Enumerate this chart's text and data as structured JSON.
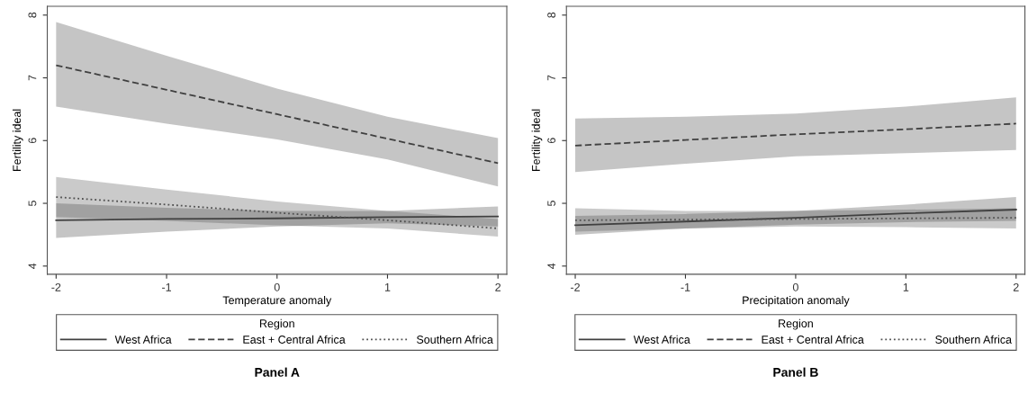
{
  "chart_data": [
    {
      "type": "line",
      "xlabel": "Temperature anomaly",
      "ylabel": "Fertility ideal",
      "legend_title": "Region",
      "legend": "bottom",
      "grid": false,
      "annotations": [
        "Panel A"
      ],
      "x": [
        -2,
        -1,
        0,
        1,
        2
      ],
      "xlim": [
        -2.08,
        2.08
      ],
      "ylim": [
        3.87,
        8.14
      ],
      "xticks": [
        -2,
        -1,
        0,
        1,
        2
      ],
      "yticks": [
        4,
        5,
        6,
        7,
        8
      ],
      "series": [
        {
          "name": "West Africa",
          "color": "#404040",
          "line_style": "solid",
          "values": [
            4.73,
            4.75,
            4.76,
            4.78,
            4.79
          ],
          "lower": [
            4.45,
            4.55,
            4.63,
            4.68,
            4.63
          ],
          "upper": [
            5.0,
            4.93,
            4.88,
            4.88,
            4.95
          ]
        },
        {
          "name": "East + Central Africa",
          "color": "#404040",
          "line_style": "dashed",
          "values": [
            7.2,
            6.81,
            6.42,
            6.03,
            5.64
          ],
          "lower": [
            6.54,
            6.27,
            6.02,
            5.7,
            5.27
          ],
          "upper": [
            7.89,
            7.35,
            6.83,
            6.38,
            6.04
          ]
        },
        {
          "name": "Southern Africa",
          "color": "#505050",
          "line_style": "dotted",
          "values": [
            5.1,
            4.98,
            4.85,
            4.73,
            4.6
          ],
          "lower": [
            4.78,
            4.72,
            4.65,
            4.6,
            4.47
          ],
          "upper": [
            5.42,
            5.22,
            5.03,
            4.88,
            4.75
          ]
        }
      ]
    },
    {
      "type": "line",
      "xlabel": "Precipitation anomaly",
      "ylabel": "Fertility ideal",
      "legend_title": "Region",
      "legend": "bottom",
      "grid": false,
      "annotations": [
        "Panel B"
      ],
      "x": [
        -2,
        -1,
        0,
        1,
        2
      ],
      "xlim": [
        -2.08,
        2.08
      ],
      "ylim": [
        3.87,
        8.14
      ],
      "xticks": [
        -2,
        -1,
        0,
        1,
        2
      ],
      "yticks": [
        4,
        5,
        6,
        7,
        8
      ],
      "series": [
        {
          "name": "West Africa",
          "color": "#404040",
          "line_style": "solid",
          "values": [
            4.65,
            4.71,
            4.77,
            4.84,
            4.9
          ],
          "lower": [
            4.5,
            4.6,
            4.66,
            4.7,
            4.72
          ],
          "upper": [
            4.8,
            4.83,
            4.88,
            4.98,
            5.1
          ]
        },
        {
          "name": "East + Central Africa",
          "color": "#404040",
          "line_style": "dashed",
          "values": [
            5.92,
            6.01,
            6.1,
            6.18,
            6.27
          ],
          "lower": [
            5.5,
            5.63,
            5.75,
            5.8,
            5.85
          ],
          "upper": [
            6.35,
            6.38,
            6.43,
            6.54,
            6.69
          ]
        },
        {
          "name": "Southern Africa",
          "color": "#505050",
          "line_style": "dotted",
          "values": [
            4.73,
            4.74,
            4.75,
            4.76,
            4.77
          ],
          "lower": [
            4.55,
            4.6,
            4.63,
            4.62,
            4.6
          ],
          "upper": [
            4.92,
            4.88,
            4.88,
            4.9,
            4.92
          ]
        }
      ]
    }
  ]
}
